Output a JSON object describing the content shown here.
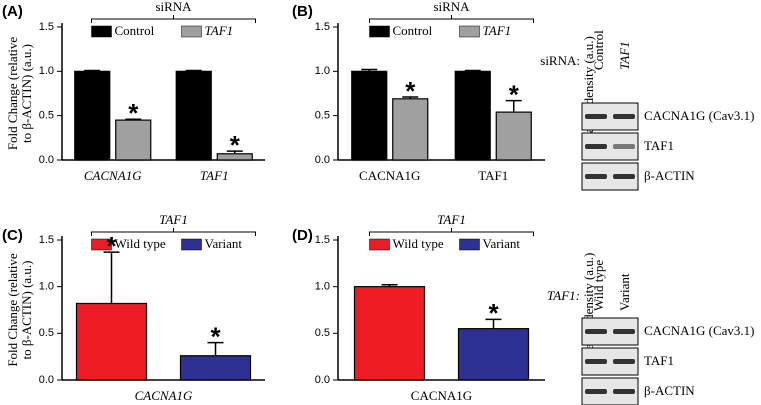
{
  "chart_data": [
    {
      "type": "bar",
      "panel": "(A)",
      "title": "siRNA",
      "ylabel": [
        "Fold Change (relative",
        "to β-ACTIN) (a.u.)"
      ],
      "italic_categories": true,
      "categories": [
        "CACNA1G",
        "TAF1"
      ],
      "series": [
        {
          "name": "Control",
          "color": "#000000",
          "values": [
            1.0,
            1.0
          ],
          "errors": [
            0.01,
            0.01
          ]
        },
        {
          "name": "TAF1",
          "italic": true,
          "color": "#a0a0a0",
          "values": [
            0.45,
            0.07
          ],
          "errors": [
            0.01,
            0.03
          ],
          "significance": [
            "*",
            "*"
          ]
        }
      ],
      "ylim": [
        0,
        1.5
      ],
      "yticks": [
        {
          "value": 0,
          "label": "0.0"
        },
        {
          "value": 0.5,
          "label": "0.5"
        },
        {
          "value": 1,
          "label": "1.0"
        },
        {
          "value": 1.5,
          "label": "1.5"
        }
      ]
    },
    {
      "type": "bar",
      "panel": "(B)",
      "title": "siRNA",
      "ylabel": [
        "Relative density (a.u.)"
      ],
      "italic_categories": false,
      "categories": [
        "CACNA1G",
        "TAF1"
      ],
      "series": [
        {
          "name": "Control",
          "color": "#000000",
          "values": [
            1.0,
            1.0
          ],
          "errors": [
            0.02,
            0.01
          ]
        },
        {
          "name": "TAF1",
          "italic": true,
          "color": "#a0a0a0",
          "values": [
            0.69,
            0.54
          ],
          "errors": [
            0.02,
            0.13
          ],
          "significance": [
            "*",
            "*"
          ]
        }
      ],
      "ylim": [
        0,
        1.5
      ],
      "yticks": [
        {
          "value": 0,
          "label": "0.0"
        },
        {
          "value": 0.5,
          "label": "0.5"
        },
        {
          "value": 1,
          "label": "1.0"
        },
        {
          "value": 1.5,
          "label": "1.5"
        }
      ]
    },
    {
      "type": "bar",
      "panel": "(C)",
      "title": "TAF1",
      "italic_title": true,
      "ylabel": [
        "Fold Change (relative",
        "to β-ACTIN) (a.u.)"
      ],
      "italic_categories": true,
      "categories": [
        "CACNA1G"
      ],
      "series": [
        {
          "name": "Wild type",
          "color": "#ee1c24",
          "values": [
            0.82
          ],
          "errors": [
            0.55
          ],
          "significance": [
            "*"
          ]
        },
        {
          "name": "Variant",
          "color": "#2e3192",
          "values": [
            0.26
          ],
          "errors": [
            0.14
          ],
          "significance": [
            "*"
          ]
        }
      ],
      "ylim": [
        0,
        1.5
      ],
      "yticks": [
        {
          "value": 0,
          "label": "0.0"
        },
        {
          "value": 0.5,
          "label": "0.5"
        },
        {
          "value": 1,
          "label": "1.0"
        },
        {
          "value": 1.5,
          "label": "1.5"
        }
      ]
    },
    {
      "type": "bar",
      "panel": "(D)",
      "title": "TAF1",
      "italic_title": true,
      "ylabel": [
        "Relative density (a.u.)"
      ],
      "italic_categories": false,
      "categories": [
        "CACNA1G"
      ],
      "series": [
        {
          "name": "Wild type",
          "color": "#ee1c24",
          "values": [
            1.0
          ],
          "errors": [
            0.02
          ]
        },
        {
          "name": "Variant",
          "color": "#2e3192",
          "values": [
            0.55
          ],
          "errors": [
            0.1
          ],
          "significance": [
            "*"
          ]
        }
      ],
      "ylim": [
        0,
        1.5
      ],
      "yticks": [
        {
          "value": 0,
          "label": "0.0"
        },
        {
          "value": 0.5,
          "label": "0.5"
        },
        {
          "value": 1,
          "label": "1.0"
        },
        {
          "value": 1.5,
          "label": "1.5"
        }
      ]
    }
  ],
  "blots": [
    {
      "header": "siRNA:",
      "lanes": [
        "Control",
        "TAF1"
      ],
      "rows": [
        "CACNA1G (Cav3.1)",
        "TAF1",
        "β-ACTIN"
      ]
    },
    {
      "header": "TAF1:",
      "lanes": [
        "Wild type",
        "Variant"
      ],
      "rows": [
        "CACNA1G (Cav3.1)",
        "TAF1",
        "β-ACTIN"
      ]
    }
  ]
}
